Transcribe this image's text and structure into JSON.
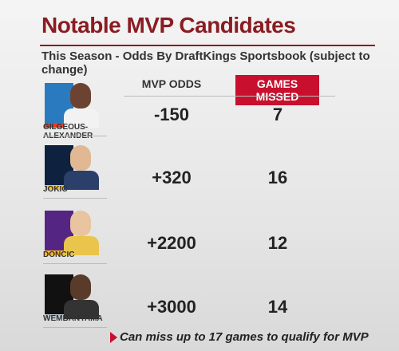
{
  "header": {
    "title": "Notable MVP Candidates",
    "subtitle": "This Season - Odds By DraftKings Sportsbook (subject to change)"
  },
  "table": {
    "columns": [
      "MVP ODDS",
      "GAMES MISSED"
    ],
    "rows": [
      {
        "player": "GILGEOUS-ALEXANDER",
        "odds": "-150",
        "games_missed": "7"
      },
      {
        "player": "JOKIC",
        "odds": "+320",
        "games_missed": "16"
      },
      {
        "player": "DONCIC",
        "odds": "+2200",
        "games_missed": "12"
      },
      {
        "player": "WEMBANYAMA",
        "odds": "+3000",
        "games_missed": "14"
      }
    ]
  },
  "footnote": "Can miss up to 17 games to qualify for MVP"
}
